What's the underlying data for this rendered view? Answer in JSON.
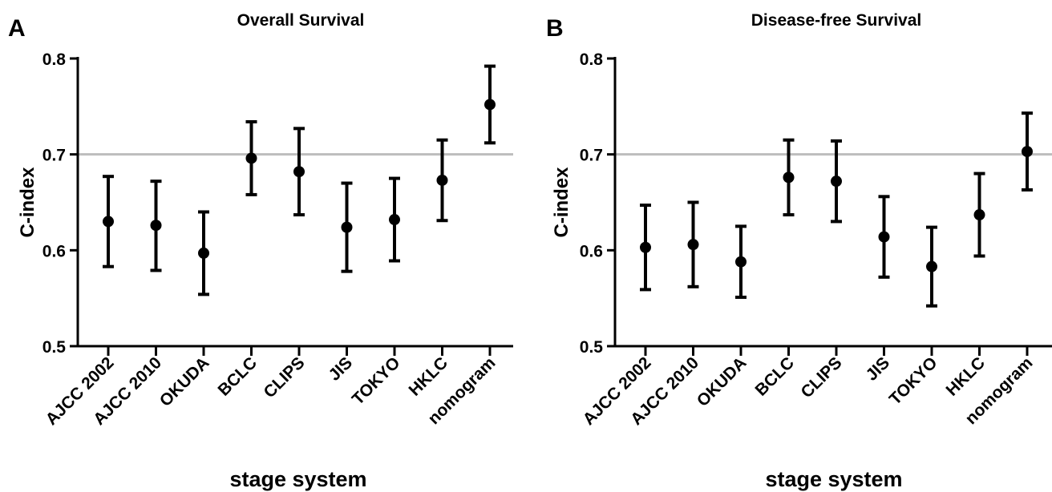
{
  "chart_data": [
    {
      "type": "scatter",
      "panel": "A",
      "title": "Overall Survival",
      "xlabel": "stage system",
      "ylabel": "C-index",
      "ylim": [
        0.5,
        0.8
      ],
      "yticks": [
        "0.5",
        "0.6",
        "0.7",
        "0.8"
      ],
      "reference_line": 0.7,
      "categories": [
        "AJCC 2002",
        "AJCC 2010",
        "OKUDA",
        "BCLC",
        "CLIPS",
        "JIS",
        "TOKYO",
        "HKLC",
        "nomogram"
      ],
      "values": [
        0.63,
        0.626,
        0.597,
        0.696,
        0.682,
        0.624,
        0.632,
        0.673,
        0.752
      ],
      "lower": [
        0.583,
        0.579,
        0.554,
        0.658,
        0.637,
        0.578,
        0.589,
        0.631,
        0.712
      ],
      "upper": [
        0.677,
        0.672,
        0.64,
        0.734,
        0.727,
        0.67,
        0.675,
        0.715,
        0.792
      ]
    },
    {
      "type": "scatter",
      "panel": "B",
      "title": "Disease-free Survival",
      "xlabel": "stage system",
      "ylabel": "C-index",
      "ylim": [
        0.5,
        0.8
      ],
      "yticks": [
        "0.5",
        "0.6",
        "0.7",
        "0.8"
      ],
      "reference_line": 0.7,
      "categories": [
        "AJCC 2002",
        "AJCC 2010",
        "OKUDA",
        "BCLC",
        "CLIPS",
        "JIS",
        "TOKYO",
        "HKLC",
        "nomogram"
      ],
      "values": [
        0.603,
        0.606,
        0.588,
        0.676,
        0.672,
        0.614,
        0.583,
        0.637,
        0.703
      ],
      "lower": [
        0.559,
        0.562,
        0.551,
        0.637,
        0.63,
        0.572,
        0.542,
        0.594,
        0.663
      ],
      "upper": [
        0.647,
        0.65,
        0.625,
        0.715,
        0.714,
        0.656,
        0.624,
        0.68,
        0.743
      ]
    }
  ]
}
